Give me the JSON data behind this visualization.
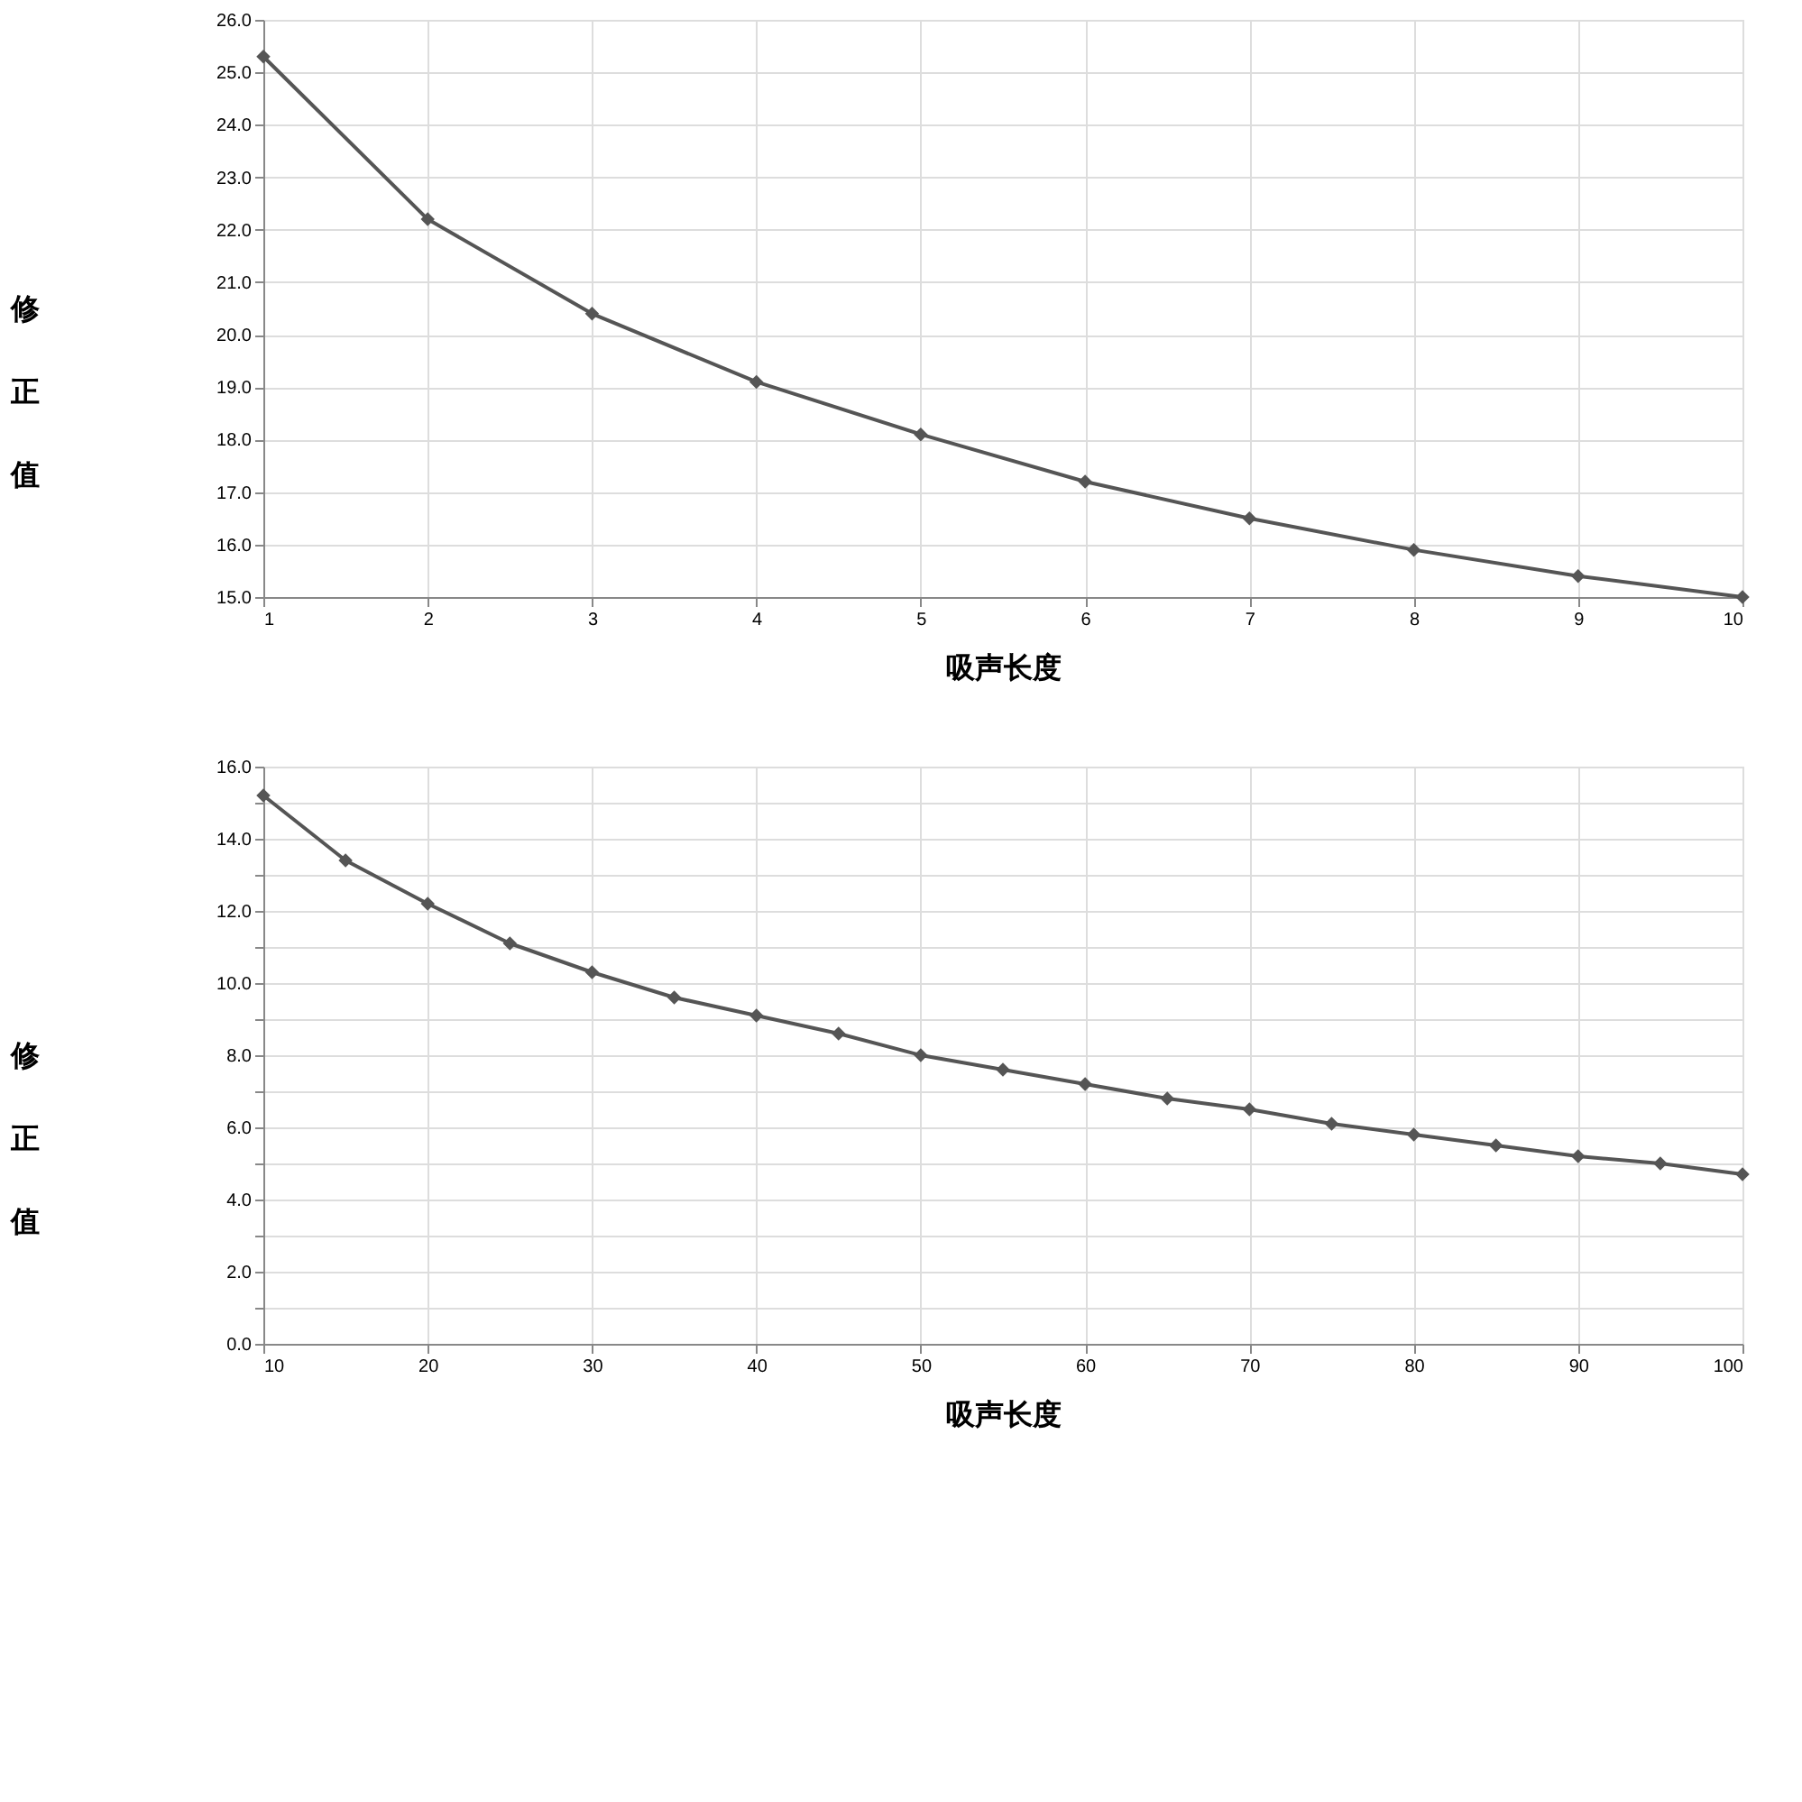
{
  "chart_data": [
    {
      "type": "line",
      "xlabel": "吸声长度",
      "ylabel": "修正值",
      "x": [
        1,
        2,
        3,
        4,
        5,
        6,
        7,
        8,
        9,
        10
      ],
      "series": [
        {
          "color": "#555555",
          "values": [
            25.3,
            22.2,
            20.4,
            19.1,
            18.1,
            17.2,
            16.5,
            15.9,
            15.4,
            15.0
          ]
        }
      ],
      "xlim": [
        1,
        10
      ],
      "xticks": [
        1,
        2,
        3,
        4,
        5,
        6,
        7,
        8,
        9,
        10
      ],
      "ylim": [
        15,
        26
      ],
      "yticks": [
        {
          "value": 15,
          "label": "15.0"
        },
        {
          "value": 16,
          "label": "16.0"
        },
        {
          "value": 17,
          "label": "17.0"
        },
        {
          "value": 18,
          "label": "18.0"
        },
        {
          "value": 19,
          "label": "19.0"
        },
        {
          "value": 20,
          "label": "20.0"
        },
        {
          "value": 21,
          "label": "21.0"
        },
        {
          "value": 22,
          "label": "22.0"
        },
        {
          "value": 23,
          "label": "23.0"
        },
        {
          "value": 24,
          "label": "24.0"
        },
        {
          "value": 25,
          "label": "25.0"
        },
        {
          "value": 26,
          "label": "26.0"
        }
      ],
      "grid": true,
      "marker": "diamond",
      "line_style": "solid"
    },
    {
      "type": "line",
      "xlabel": "吸声长度",
      "ylabel": "修正值",
      "x": [
        10,
        15,
        20,
        25,
        30,
        35,
        40,
        45,
        50,
        55,
        60,
        65,
        70,
        75,
        80,
        85,
        90,
        95,
        100
      ],
      "series": [
        {
          "color": "#555555",
          "values": [
            15.2,
            13.4,
            12.2,
            11.1,
            10.3,
            9.6,
            9.1,
            8.6,
            8.0,
            7.6,
            7.2,
            6.8,
            6.5,
            6.1,
            5.8,
            5.5,
            5.2,
            5.0,
            4.7
          ]
        }
      ],
      "xlim": [
        10,
        100
      ],
      "xticks": [
        10,
        20,
        30,
        40,
        50,
        60,
        70,
        80,
        90,
        100
      ],
      "ylim": [
        0,
        16
      ],
      "yticks": [
        {
          "value": 0,
          "label": "0.0"
        },
        {
          "value": 1,
          "label": null
        },
        {
          "value": 2,
          "label": "2.0"
        },
        {
          "value": 3,
          "label": null
        },
        {
          "value": 4,
          "label": "4.0"
        },
        {
          "value": 5,
          "label": null
        },
        {
          "value": 6,
          "label": "6.0"
        },
        {
          "value": 7,
          "label": null
        },
        {
          "value": 8,
          "label": "8.0"
        },
        {
          "value": 9,
          "label": null
        },
        {
          "value": 10,
          "label": "10.0"
        },
        {
          "value": 11,
          "label": null
        },
        {
          "value": 12,
          "label": "12.0"
        },
        {
          "value": 13,
          "label": null
        },
        {
          "value": 14,
          "label": "14.0"
        },
        {
          "value": 15,
          "label": null
        },
        {
          "value": 16,
          "label": "16.0"
        }
      ],
      "grid": true,
      "marker": "diamond",
      "line_style": "solid"
    }
  ]
}
